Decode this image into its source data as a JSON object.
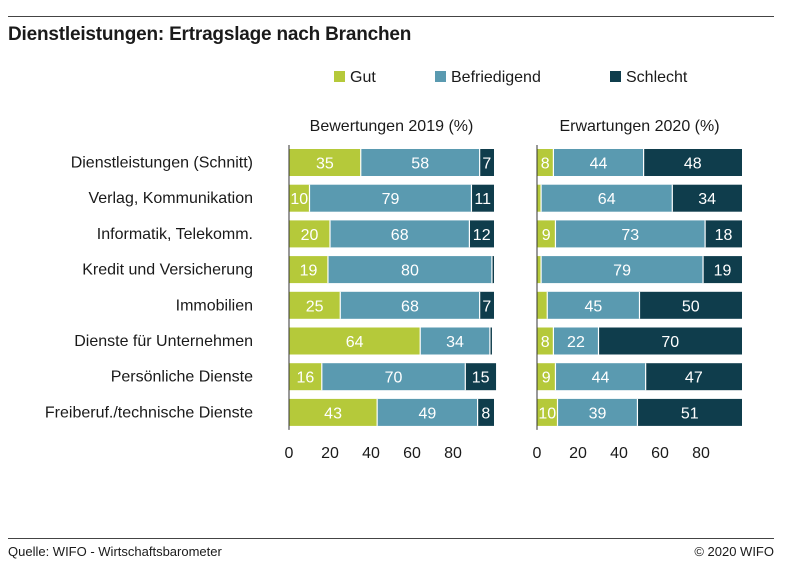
{
  "title": "Dienstleistungen: Ertragslage nach Branchen",
  "footer": {
    "source": "Quelle: WIFO - Wirtschaftsbarometer",
    "copyright": "© 2020 WIFO"
  },
  "colors": {
    "Gut": "#b5c93a",
    "Befriedigend": "#5a9ab0",
    "Schlecht": "#0f3d4c",
    "separator": "#ffffff"
  },
  "chart_data": {
    "type": "bar",
    "orientation": "horizontal",
    "stacked": true,
    "legend_position": "top",
    "categories": [
      "Dienstleistungen (Schnitt)",
      "Verlag, Kommunikation",
      "Informatik, Telekomm.",
      "Kredit und Versicherung",
      "Immobilien",
      "Dienste für Unternehmen",
      "Persönliche Dienste",
      "Freiberuf./technische Dienste"
    ],
    "legend": [
      "Gut",
      "Befriedigend",
      "Schlecht"
    ],
    "xlim": [
      0,
      100
    ],
    "ticks": [
      0,
      20,
      40,
      60,
      80
    ],
    "panels": [
      {
        "title": "Bewertungen 2019 (%)",
        "series": [
          {
            "name": "Gut",
            "values": [
              35,
              10,
              20,
              19,
              25,
              64,
              16,
              43
            ]
          },
          {
            "name": "Befriedigend",
            "values": [
              58,
              79,
              68,
              80,
              68,
              34,
              70,
              49
            ]
          },
          {
            "name": "Schlecht",
            "values": [
              7,
              11,
              12,
              1,
              7,
              1,
              15,
              8
            ]
          }
        ],
        "shown_labels": [
          [
            "35",
            "58",
            "7"
          ],
          [
            "10",
            "79",
            "11"
          ],
          [
            "20",
            "68",
            "12"
          ],
          [
            "19",
            "80",
            ""
          ],
          [
            "25",
            "68",
            "7"
          ],
          [
            "64",
            "34",
            ""
          ],
          [
            "16",
            "70",
            "15"
          ],
          [
            "43",
            "49",
            "8"
          ]
        ]
      },
      {
        "title": "Erwartungen 2020 (%)",
        "series": [
          {
            "name": "Gut",
            "values": [
              8,
              2,
              9,
              2,
              5,
              8,
              9,
              10
            ]
          },
          {
            "name": "Befriedigend",
            "values": [
              44,
              64,
              73,
              79,
              45,
              22,
              44,
              39
            ]
          },
          {
            "name": "Schlecht",
            "values": [
              48,
              34,
              18,
              19,
              50,
              70,
              47,
              51
            ]
          }
        ],
        "shown_labels": [
          [
            "8",
            "44",
            "48"
          ],
          [
            "",
            "64",
            "34"
          ],
          [
            "9",
            "73",
            "18"
          ],
          [
            "",
            "79",
            "19"
          ],
          [
            "",
            "45",
            "50"
          ],
          [
            "8",
            "22",
            "70"
          ],
          [
            "9",
            "44",
            "47"
          ],
          [
            "10",
            "39",
            "51"
          ]
        ]
      }
    ]
  }
}
